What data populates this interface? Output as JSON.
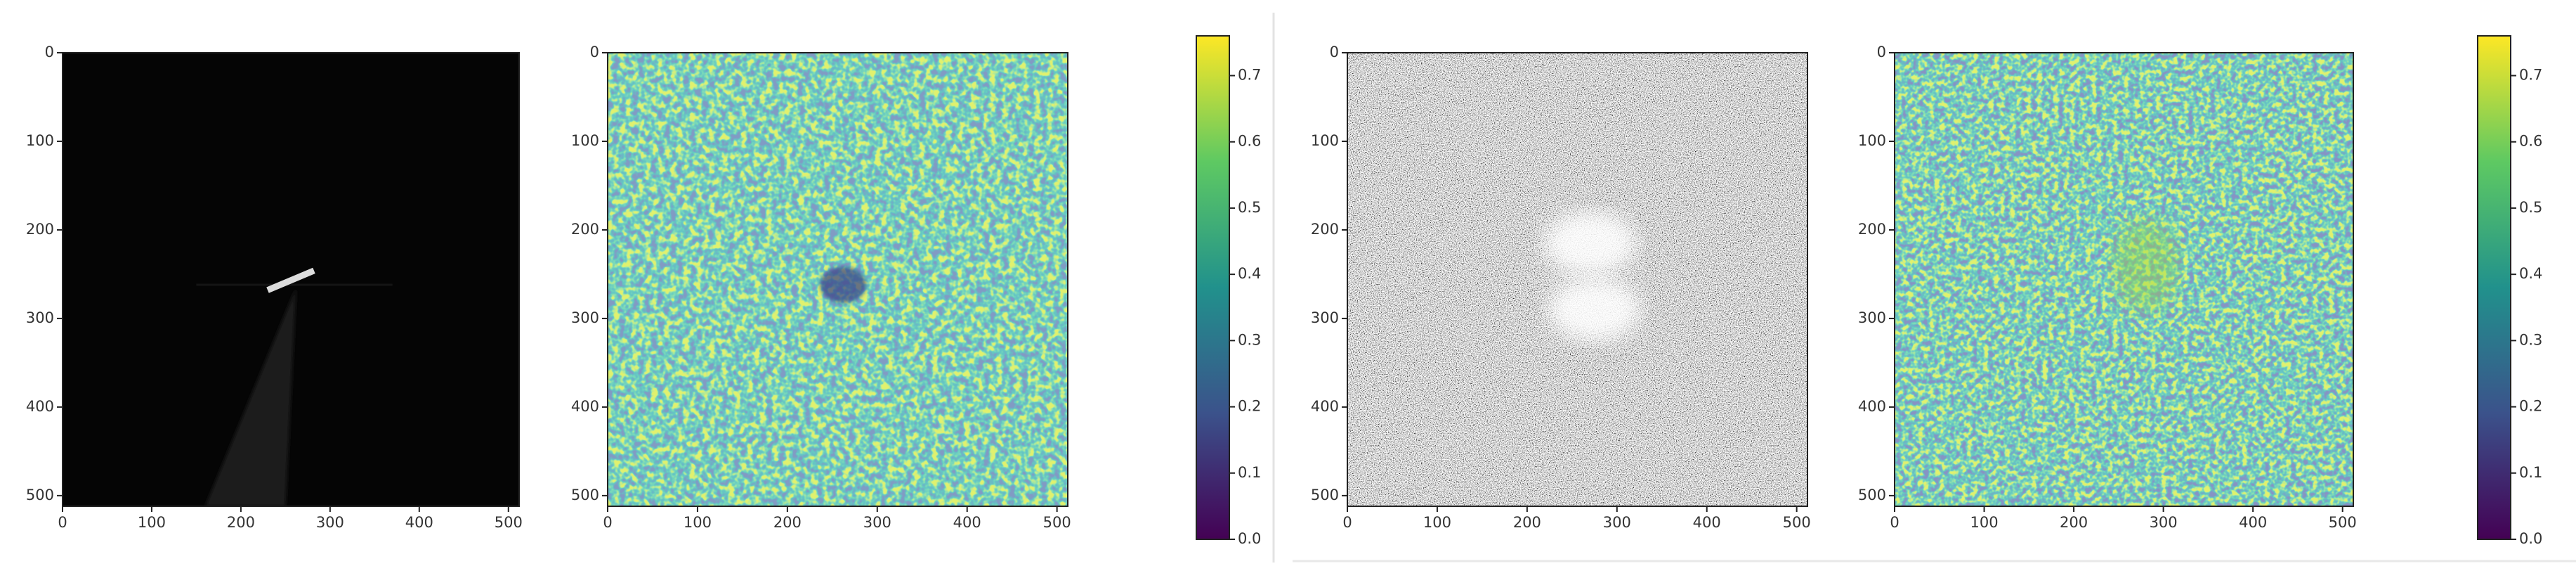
{
  "figures": [
    {
      "panels": [
        {
          "xlim": [
            0,
            512
          ],
          "ylim": [
            0,
            512
          ],
          "xticks": [
            0,
            100,
            200,
            300,
            400,
            500
          ],
          "yticks": [
            0,
            100,
            200,
            300,
            400,
            500
          ]
        },
        {
          "xlim": [
            0,
            512
          ],
          "ylim": [
            0,
            512
          ],
          "xticks": [
            0,
            100,
            200,
            300,
            400,
            500
          ],
          "yticks": [
            0,
            100,
            200,
            300,
            400,
            500
          ]
        }
      ],
      "colorbar": {
        "lim": [
          0,
          0.76
        ],
        "ticks": [
          {
            "value": 0,
            "label": "0.0"
          },
          {
            "value": 0.1,
            "label": "0.1"
          },
          {
            "value": 0.2,
            "label": "0.2"
          },
          {
            "value": 0.3,
            "label": "0.3"
          },
          {
            "value": 0.4,
            "label": "0.4"
          },
          {
            "value": 0.5,
            "label": "0.5"
          },
          {
            "value": 0.6,
            "label": "0.6"
          },
          {
            "value": 0.7,
            "label": "0.7"
          }
        ]
      }
    },
    {
      "panels": [
        {
          "xlim": [
            0,
            512
          ],
          "ylim": [
            0,
            512
          ],
          "xticks": [
            0,
            100,
            200,
            300,
            400,
            500
          ],
          "yticks": [
            0,
            100,
            200,
            300,
            400,
            500
          ]
        },
        {
          "xlim": [
            0,
            512
          ],
          "ylim": [
            0,
            512
          ],
          "xticks": [
            0,
            100,
            200,
            300,
            400,
            500
          ],
          "yticks": [
            0,
            100,
            200,
            300,
            400,
            500
          ]
        }
      ],
      "colorbar": {
        "lim": [
          0,
          0.76
        ],
        "ticks": [
          {
            "value": 0,
            "label": "0.0"
          },
          {
            "value": 0.1,
            "label": "0.1"
          },
          {
            "value": 0.2,
            "label": "0.2"
          },
          {
            "value": 0.3,
            "label": "0.3"
          },
          {
            "value": 0.4,
            "label": "0.4"
          },
          {
            "value": 0.5,
            "label": "0.5"
          },
          {
            "value": 0.6,
            "label": "0.6"
          },
          {
            "value": 0.7,
            "label": "0.7"
          }
        ]
      }
    }
  ]
}
